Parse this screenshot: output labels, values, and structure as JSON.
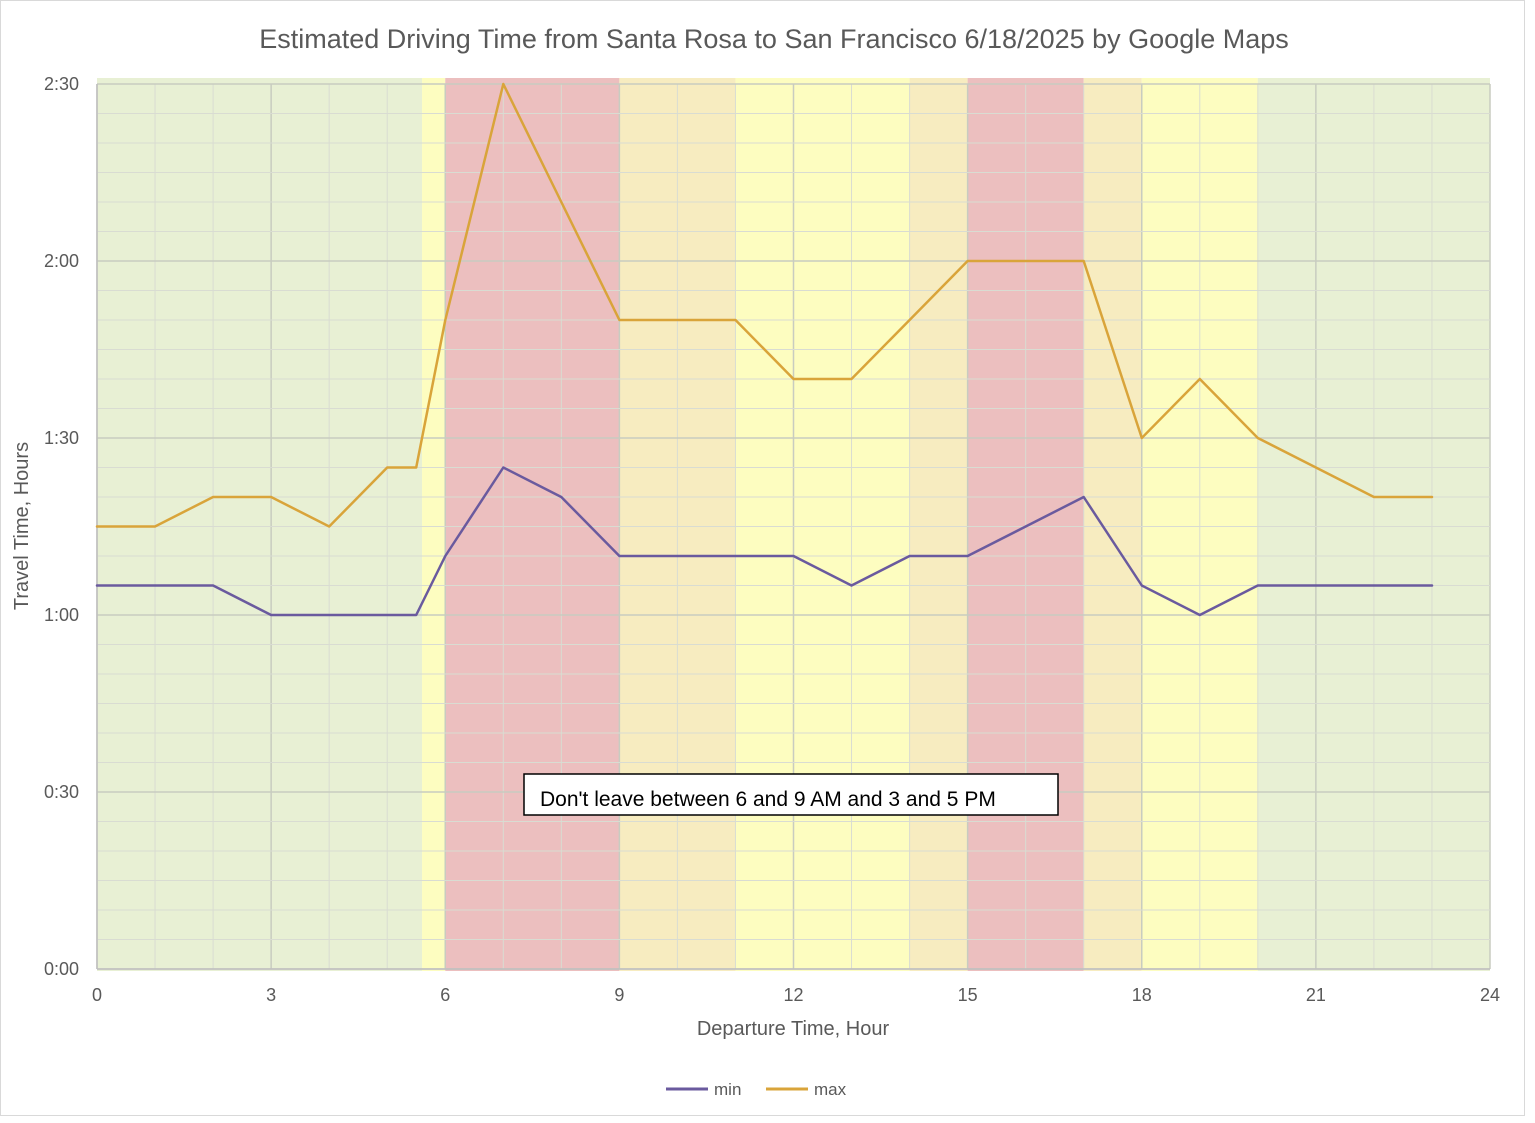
{
  "chart_data": {
    "type": "line",
    "title": "Estimated Driving Time from Santa Rosa to San Francisco 6/18/2025 by Google Maps",
    "xlabel": "Departure Time, Hour",
    "ylabel": "Travel Time, Hours",
    "xlim": [
      0,
      24
    ],
    "ylim_minutes": [
      0,
      150
    ],
    "x_ticks": [
      {
        "value": 0,
        "label": "0"
      },
      {
        "value": 3,
        "label": "3"
      },
      {
        "value": 6,
        "label": "6"
      },
      {
        "value": 9,
        "label": "9"
      },
      {
        "value": 12,
        "label": "12"
      },
      {
        "value": 15,
        "label": "15"
      },
      {
        "value": 18,
        "label": "18"
      },
      {
        "value": 21,
        "label": "21"
      },
      {
        "value": 24,
        "label": "24"
      }
    ],
    "y_ticks": [
      {
        "value": 0,
        "label": "0:00"
      },
      {
        "value": 30,
        "label": "0:30"
      },
      {
        "value": 60,
        "label": "1:00"
      },
      {
        "value": 90,
        "label": "1:30"
      },
      {
        "value": 120,
        "label": "2:00"
      },
      {
        "value": 150,
        "label": "2:30"
      }
    ],
    "grid": true,
    "legend_position": "bottom",
    "series": [
      {
        "name": "min",
        "color": "#6a5a9e",
        "x": [
          0,
          1,
          2,
          3,
          4,
          5,
          5.5,
          6,
          7,
          8,
          9,
          10,
          11,
          12,
          13,
          14,
          15,
          16,
          17,
          18,
          19,
          20,
          21,
          22,
          23
        ],
        "values": [
          65,
          65,
          65,
          60,
          60,
          60,
          60,
          70,
          85,
          80,
          70,
          70,
          70,
          70,
          65,
          70,
          70,
          75,
          80,
          65,
          60,
          65,
          65,
          65,
          65
        ]
      },
      {
        "name": "max",
        "color": "#d9a43a",
        "x": [
          0,
          1,
          2,
          3,
          4,
          5,
          5.5,
          6,
          7,
          8,
          9,
          10,
          11,
          12,
          13,
          14,
          15,
          16,
          17,
          18,
          19,
          20,
          21,
          22,
          23
        ],
        "values": [
          75,
          75,
          80,
          80,
          75,
          85,
          85,
          110,
          150,
          130,
          110,
          110,
          110,
          100,
          100,
          110,
          120,
          120,
          120,
          90,
          100,
          90,
          85,
          80,
          80
        ]
      }
    ],
    "bands": [
      {
        "from": 0,
        "to": 5.6,
        "color": "#e8f0d4"
      },
      {
        "from": 5.6,
        "to": 6,
        "color": "#fdfdc0"
      },
      {
        "from": 6,
        "to": 9,
        "color": "#ecbfbf"
      },
      {
        "from": 9,
        "to": 11,
        "color": "#f7ecc0"
      },
      {
        "from": 11,
        "to": 14,
        "color": "#fdfdc0"
      },
      {
        "from": 14,
        "to": 15,
        "color": "#f7ecc0"
      },
      {
        "from": 15,
        "to": 17,
        "color": "#ecbfbf"
      },
      {
        "from": 17,
        "to": 18,
        "color": "#f7ecc0"
      },
      {
        "from": 18,
        "to": 20,
        "color": "#fdfdc0"
      },
      {
        "from": 20,
        "to": 24,
        "color": "#e8f0d4"
      }
    ],
    "annotation": "Don't leave between 6 and 9 AM and 3 and 5 PM"
  }
}
